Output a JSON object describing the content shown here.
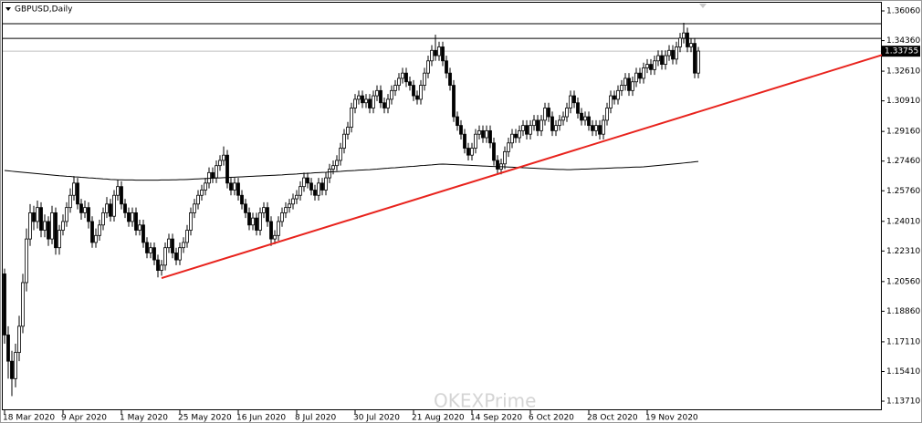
{
  "chart_data": {
    "type": "candlestick",
    "title": "GBPUSD,Daily",
    "watermark": "OKEXPrime",
    "categories": [
      "18 Mar 2020",
      null,
      null,
      null,
      null,
      null,
      null,
      null,
      null,
      null,
      null,
      null,
      null,
      null,
      null,
      null,
      "9 Apr 2020",
      null,
      null,
      null,
      null,
      null,
      null,
      null,
      null,
      null,
      null,
      null,
      null,
      null,
      null,
      null,
      "1 May 2020",
      null,
      null,
      null,
      null,
      null,
      null,
      null,
      null,
      null,
      null,
      null,
      null,
      null,
      null,
      null,
      "25 May 2020",
      null,
      null,
      null,
      null,
      null,
      null,
      null,
      null,
      null,
      null,
      null,
      null,
      null,
      null,
      null,
      "16 Jun 2020",
      null,
      null,
      null,
      null,
      null,
      null,
      null,
      null,
      null,
      null,
      null,
      null,
      null,
      null,
      null,
      "8 Jul 2020",
      null,
      null,
      null,
      null,
      null,
      null,
      null,
      null,
      null,
      null,
      null,
      null,
      null,
      null,
      null,
      "30 Jul 2020",
      null,
      null,
      null,
      null,
      null,
      null,
      null,
      null,
      null,
      null,
      null,
      null,
      null,
      null,
      null,
      "21 Aug 2020",
      null,
      null,
      null,
      null,
      null,
      null,
      null,
      null,
      null,
      null,
      null,
      null,
      null,
      null,
      null,
      "14 Sep 2020",
      null,
      null,
      null,
      null,
      null,
      null,
      null,
      null,
      null,
      null,
      null,
      null,
      null,
      null,
      null,
      "6 Oct 2020",
      null,
      null,
      null,
      null,
      null,
      null,
      null,
      null,
      null,
      null,
      null,
      null,
      null,
      null,
      null,
      "28 Oct 2020",
      null,
      null,
      null,
      null,
      null,
      null,
      null,
      null,
      null,
      null,
      null,
      null,
      null,
      null,
      null,
      "19 Nov 2020",
      null,
      null,
      null,
      null,
      null,
      null,
      null,
      null,
      null,
      null,
      null,
      null,
      null,
      null
    ],
    "open": [
      1.21,
      1.175,
      1.16,
      1.15,
      1.165,
      1.18,
      1.205,
      1.23,
      1.245,
      1.24,
      1.248,
      1.235,
      1.24,
      1.23,
      1.245,
      1.225,
      1.235,
      1.24,
      1.248,
      1.255,
      1.262,
      1.25,
      1.245,
      1.248,
      1.24,
      1.228,
      1.232,
      1.238,
      1.245,
      1.25,
      1.243,
      1.255,
      1.26,
      1.25,
      1.245,
      1.24,
      1.245,
      1.235,
      1.238,
      1.228,
      1.222,
      1.225,
      1.218,
      1.212,
      1.215,
      1.225,
      1.23,
      1.222,
      1.218,
      1.225,
      1.228,
      1.235,
      1.245,
      1.25,
      1.255,
      1.258,
      1.262,
      1.268,
      1.265,
      1.272,
      1.275,
      1.278,
      1.262,
      1.258,
      1.262,
      1.255,
      1.25,
      1.245,
      1.238,
      1.242,
      1.235,
      1.245,
      1.248,
      1.24,
      1.23,
      1.232,
      1.24,
      1.245,
      1.248,
      1.25,
      1.253,
      1.255,
      1.26,
      1.265,
      1.262,
      1.258,
      1.255,
      1.262,
      1.258,
      1.265,
      1.27,
      1.272,
      1.275,
      1.282,
      1.29,
      1.294,
      1.305,
      1.31,
      1.312,
      1.308,
      1.31,
      1.305,
      1.312,
      1.315,
      1.308,
      1.305,
      1.31,
      1.315,
      1.318,
      1.322,
      1.325,
      1.32,
      1.318,
      1.312,
      1.31,
      1.318,
      1.325,
      1.332,
      1.338,
      1.335,
      1.34,
      1.332,
      1.325,
      1.318,
      1.3,
      1.295,
      1.29,
      1.282,
      1.278,
      1.282,
      1.29,
      1.292,
      1.288,
      1.292,
      1.285,
      1.275,
      1.27,
      1.273,
      1.28,
      1.285,
      1.29,
      1.288,
      1.292,
      1.295,
      1.29,
      1.295,
      1.298,
      1.292,
      1.298,
      1.305,
      1.3,
      1.292,
      1.295,
      1.298,
      1.3,
      1.305,
      1.312,
      1.308,
      1.302,
      1.298,
      1.3,
      1.295,
      1.292,
      1.295,
      1.29,
      1.298,
      1.305,
      1.312,
      1.31,
      1.315,
      1.318,
      1.322,
      1.315,
      1.32,
      1.325,
      1.322,
      1.328,
      1.33,
      1.327,
      1.332,
      1.335,
      1.33,
      1.335,
      1.338,
      1.333,
      1.34,
      1.345,
      1.348,
      1.34,
      1.342,
      1.325
    ],
    "high": [
      1.213,
      1.18,
      1.166,
      1.17,
      1.186,
      1.21,
      1.236,
      1.25,
      1.249,
      1.252,
      1.251,
      1.244,
      1.243,
      1.249,
      1.248,
      1.238,
      1.244,
      1.251,
      1.259,
      1.266,
      1.265,
      1.253,
      1.252,
      1.251,
      1.243,
      1.236,
      1.241,
      1.248,
      1.254,
      1.253,
      1.258,
      1.264,
      1.263,
      1.253,
      1.248,
      1.248,
      1.248,
      1.241,
      1.241,
      1.231,
      1.228,
      1.228,
      1.221,
      1.218,
      1.228,
      1.233,
      1.233,
      1.225,
      1.228,
      1.231,
      1.238,
      1.248,
      1.253,
      1.258,
      1.261,
      1.265,
      1.271,
      1.271,
      1.275,
      1.278,
      1.283,
      1.281,
      1.265,
      1.265,
      1.265,
      1.258,
      1.253,
      1.248,
      1.245,
      1.245,
      1.248,
      1.251,
      1.251,
      1.243,
      1.235,
      1.243,
      1.248,
      1.251,
      1.253,
      1.256,
      1.258,
      1.263,
      1.268,
      1.268,
      1.265,
      1.261,
      1.265,
      1.265,
      1.268,
      1.273,
      1.275,
      1.278,
      1.285,
      1.293,
      1.297,
      1.308,
      1.313,
      1.315,
      1.315,
      1.313,
      1.313,
      1.315,
      1.318,
      1.318,
      1.311,
      1.313,
      1.318,
      1.321,
      1.325,
      1.328,
      1.328,
      1.323,
      1.321,
      1.315,
      1.321,
      1.328,
      1.335,
      1.341,
      1.347,
      1.343,
      1.343,
      1.335,
      1.328,
      1.321,
      1.303,
      1.298,
      1.293,
      1.285,
      1.285,
      1.293,
      1.295,
      1.295,
      1.295,
      1.295,
      1.288,
      1.278,
      1.276,
      1.283,
      1.288,
      1.293,
      1.293,
      1.295,
      1.298,
      1.298,
      1.298,
      1.301,
      1.301,
      1.301,
      1.308,
      1.308,
      1.303,
      1.298,
      1.301,
      1.303,
      1.308,
      1.315,
      1.315,
      1.311,
      1.305,
      1.303,
      1.303,
      1.298,
      1.298,
      1.298,
      1.301,
      1.308,
      1.315,
      1.315,
      1.318,
      1.321,
      1.325,
      1.325,
      1.323,
      1.328,
      1.328,
      1.331,
      1.333,
      1.333,
      1.335,
      1.338,
      1.338,
      1.338,
      1.341,
      1.341,
      1.343,
      1.348,
      1.3538,
      1.351,
      1.345,
      1.345,
      1.34
    ],
    "low": [
      1.17,
      1.15,
      1.14,
      1.145,
      1.16,
      1.176,
      1.2,
      1.226,
      1.235,
      1.236,
      1.231,
      1.231,
      1.226,
      1.227,
      1.221,
      1.221,
      1.232,
      1.237,
      1.245,
      1.252,
      1.247,
      1.241,
      1.242,
      1.236,
      1.225,
      1.225,
      1.229,
      1.235,
      1.242,
      1.24,
      1.24,
      1.252,
      1.247,
      1.242,
      1.237,
      1.237,
      1.232,
      1.232,
      1.225,
      1.219,
      1.219,
      1.215,
      1.208,
      1.209,
      1.212,
      1.222,
      1.219,
      1.215,
      1.215,
      1.222,
      1.225,
      1.232,
      1.242,
      1.247,
      1.252,
      1.255,
      1.259,
      1.262,
      1.262,
      1.269,
      1.272,
      1.259,
      1.255,
      1.255,
      1.252,
      1.247,
      1.242,
      1.235,
      1.235,
      1.232,
      1.232,
      1.242,
      1.237,
      1.226,
      1.227,
      1.229,
      1.237,
      1.242,
      1.245,
      1.247,
      1.25,
      1.252,
      1.257,
      1.259,
      1.255,
      1.252,
      1.252,
      1.255,
      1.255,
      1.262,
      1.267,
      1.269,
      1.272,
      1.279,
      1.287,
      1.291,
      1.302,
      1.307,
      1.305,
      1.305,
      1.302,
      1.302,
      1.309,
      1.305,
      1.302,
      1.302,
      1.307,
      1.312,
      1.315,
      1.319,
      1.317,
      1.315,
      1.309,
      1.307,
      1.307,
      1.315,
      1.322,
      1.329,
      1.332,
      1.332,
      1.329,
      1.322,
      1.315,
      1.297,
      1.292,
      1.287,
      1.279,
      1.275,
      1.275,
      1.279,
      1.287,
      1.285,
      1.285,
      1.282,
      1.272,
      1.267,
      1.267,
      1.27,
      1.277,
      1.282,
      1.285,
      1.285,
      1.289,
      1.287,
      1.287,
      1.292,
      1.289,
      1.289,
      1.295,
      1.297,
      1.289,
      1.289,
      1.292,
      1.295,
      1.297,
      1.302,
      1.305,
      1.299,
      1.295,
      1.295,
      1.292,
      1.289,
      1.289,
      1.287,
      1.287,
      1.295,
      1.302,
      1.307,
      1.307,
      1.312,
      1.315,
      1.312,
      1.312,
      1.317,
      1.319,
      1.319,
      1.325,
      1.324,
      1.324,
      1.329,
      1.327,
      1.327,
      1.332,
      1.33,
      1.33,
      1.337,
      1.342,
      1.337,
      1.337,
      1.322,
      1.322
    ],
    "close": [
      1.175,
      1.16,
      1.15,
      1.165,
      1.18,
      1.205,
      1.23,
      1.245,
      1.24,
      1.248,
      1.235,
      1.24,
      1.23,
      1.245,
      1.225,
      1.235,
      1.24,
      1.248,
      1.255,
      1.262,
      1.25,
      1.245,
      1.248,
      1.24,
      1.228,
      1.232,
      1.238,
      1.245,
      1.25,
      1.243,
      1.255,
      1.26,
      1.25,
      1.245,
      1.24,
      1.245,
      1.235,
      1.238,
      1.228,
      1.222,
      1.225,
      1.218,
      1.212,
      1.215,
      1.225,
      1.23,
      1.222,
      1.218,
      1.225,
      1.228,
      1.235,
      1.245,
      1.25,
      1.255,
      1.258,
      1.262,
      1.268,
      1.265,
      1.272,
      1.275,
      1.278,
      1.262,
      1.258,
      1.262,
      1.255,
      1.25,
      1.245,
      1.238,
      1.242,
      1.235,
      1.245,
      1.248,
      1.24,
      1.23,
      1.232,
      1.24,
      1.245,
      1.248,
      1.25,
      1.253,
      1.255,
      1.26,
      1.265,
      1.262,
      1.258,
      1.255,
      1.262,
      1.258,
      1.265,
      1.27,
      1.272,
      1.275,
      1.282,
      1.29,
      1.294,
      1.305,
      1.31,
      1.312,
      1.308,
      1.31,
      1.305,
      1.312,
      1.315,
      1.308,
      1.305,
      1.31,
      1.315,
      1.318,
      1.322,
      1.325,
      1.32,
      1.318,
      1.312,
      1.31,
      1.318,
      1.325,
      1.332,
      1.338,
      1.335,
      1.34,
      1.332,
      1.325,
      1.318,
      1.3,
      1.295,
      1.29,
      1.282,
      1.278,
      1.282,
      1.29,
      1.292,
      1.288,
      1.292,
      1.285,
      1.275,
      1.27,
      1.273,
      1.28,
      1.285,
      1.29,
      1.288,
      1.292,
      1.295,
      1.29,
      1.295,
      1.298,
      1.292,
      1.298,
      1.305,
      1.3,
      1.292,
      1.295,
      1.298,
      1.3,
      1.305,
      1.312,
      1.308,
      1.302,
      1.298,
      1.3,
      1.295,
      1.292,
      1.295,
      1.29,
      1.298,
      1.305,
      1.312,
      1.31,
      1.315,
      1.318,
      1.322,
      1.315,
      1.32,
      1.325,
      1.322,
      1.328,
      1.33,
      1.327,
      1.332,
      1.335,
      1.33,
      1.335,
      1.338,
      1.333,
      1.34,
      1.345,
      1.348,
      1.34,
      1.342,
      1.325,
      1.3376
    ],
    "ma": {
      "color": "#000000",
      "values": [
        1.2692,
        1.269,
        1.2688,
        1.2686,
        1.2684,
        1.2682,
        1.268,
        1.2678,
        1.2676,
        1.2674,
        1.2672,
        1.267,
        1.2668,
        1.2666,
        1.2664,
        1.2662,
        1.2661,
        1.2659,
        1.2658,
        1.2656,
        1.2655,
        1.2653,
        1.2652,
        1.265,
        1.2649,
        1.2647,
        1.2646,
        1.2644,
        1.2643,
        1.2641,
        1.264,
        1.2639,
        1.2639,
        1.2638,
        1.2638,
        1.2638,
        1.2637,
        1.2637,
        1.2637,
        1.2637,
        1.2637,
        1.2637,
        1.2637,
        1.2638,
        1.2638,
        1.2638,
        1.2639,
        1.2639,
        1.264,
        1.264,
        1.2641,
        1.2642,
        1.2643,
        1.2644,
        1.2645,
        1.2646,
        1.2647,
        1.2648,
        1.2649,
        1.265,
        1.2651,
        1.2652,
        1.2653,
        1.2654,
        1.2655,
        1.2656,
        1.2657,
        1.2658,
        1.2659,
        1.266,
        1.2661,
        1.2662,
        1.2663,
        1.2664,
        1.2665,
        1.2666,
        1.2667,
        1.2669,
        1.267,
        1.2671,
        1.2672,
        1.2674,
        1.2675,
        1.2676,
        1.2677,
        1.2679,
        1.268,
        1.2681,
        1.2682,
        1.2684,
        1.2685,
        1.2686,
        1.2687,
        1.2689,
        1.269,
        1.2691,
        1.2692,
        1.2694,
        1.2695,
        1.2696,
        1.2697,
        1.2699,
        1.27,
        1.2702,
        1.2704,
        1.2705,
        1.2707,
        1.2708,
        1.271,
        1.2712,
        1.2713,
        1.2715,
        1.2716,
        1.2718,
        1.272,
        1.2721,
        1.2723,
        1.2724,
        1.2726,
        1.2728,
        1.2729,
        1.2728,
        1.2727,
        1.2726,
        1.2725,
        1.2724,
        1.2723,
        1.2722,
        1.2721,
        1.272,
        1.2719,
        1.2718,
        1.2717,
        1.2716,
        1.2715,
        1.2714,
        1.2714,
        1.2713,
        1.2712,
        1.2711,
        1.271,
        1.2709,
        1.2708,
        1.2707,
        1.2706,
        1.2705,
        1.2704,
        1.2703,
        1.2702,
        1.2701,
        1.27,
        1.2699,
        1.2698,
        1.2698,
        1.2697,
        1.2697,
        1.2698,
        1.2699,
        1.27,
        1.27,
        1.2701,
        1.2702,
        1.2703,
        1.2704,
        1.2704,
        1.2705,
        1.2706,
        1.2707,
        1.2708,
        1.2708,
        1.2709,
        1.271,
        1.2711,
        1.2712,
        1.2712,
        1.2713,
        1.2715,
        1.2717,
        1.2719,
        1.2721,
        1.2723,
        1.2725,
        1.2727,
        1.2729,
        1.2731,
        1.2733,
        1.2735,
        1.2737,
        1.2739,
        1.2742,
        1.2744
      ]
    },
    "trendline": {
      "color": "#e8231d",
      "x": [
        43,
        240.5
      ],
      "y": [
        1.2076,
        1.3355
      ]
    },
    "hlines": [
      1.3533,
      1.3449
    ],
    "last_price": 1.33755,
    "ylim": [
      1.1319,
      1.3653
    ],
    "yticks": [
      {
        "value": 1.3606,
        "label": "1.36060"
      },
      {
        "value": 1.3436,
        "label": "1.34360"
      },
      {
        "value": 1.3261,
        "label": "1.32610"
      },
      {
        "value": 1.3091,
        "label": "1.30910"
      },
      {
        "value": 1.2916,
        "label": "1.29160"
      },
      {
        "value": 1.2746,
        "label": "1.27460"
      },
      {
        "value": 1.2576,
        "label": "1.25760"
      },
      {
        "value": 1.2401,
        "label": "1.24010"
      },
      {
        "value": 1.2231,
        "label": "1.22310"
      },
      {
        "value": 1.2056,
        "label": "1.20560"
      },
      {
        "value": 1.1886,
        "label": "1.18860"
      },
      {
        "value": 1.1711,
        "label": "1.17110"
      },
      {
        "value": 1.1541,
        "label": "1.15410"
      },
      {
        "value": 1.1371,
        "label": "1.13710"
      }
    ]
  }
}
